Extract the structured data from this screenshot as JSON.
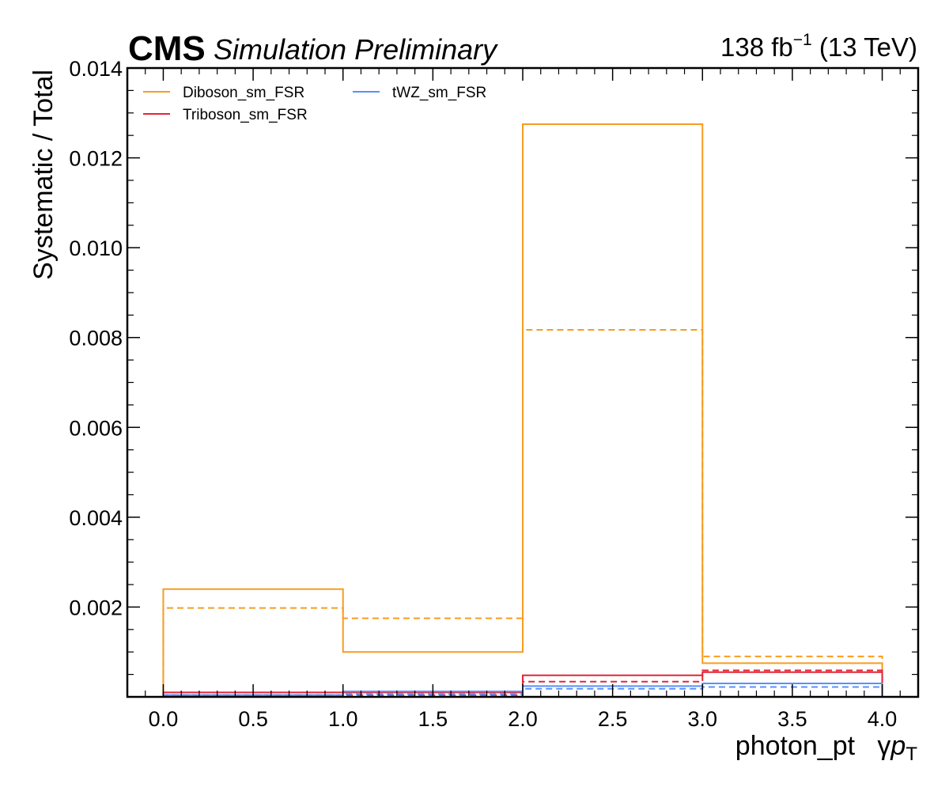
{
  "chart_data": {
    "type": "line",
    "header": {
      "experiment": "CMS",
      "status": "Simulation Preliminary",
      "lumi_prefix": "138 fb",
      "lumi_exponent": "−1",
      "lumi_suffix": " (13 TeV)"
    },
    "xlabel": "photon_pt   γ",
    "xlabel_math": "p",
    "xlabel_sub": "T",
    "ylabel": "Systematic / Total",
    "xlim": [
      -0.2,
      4.2
    ],
    "ylim": [
      0.0,
      0.014
    ],
    "x_ticks": [
      "0.0",
      "0.5",
      "1.0",
      "1.5",
      "2.0",
      "2.5",
      "3.0",
      "3.5",
      "4.0"
    ],
    "y_ticks": [
      "0.002",
      "0.004",
      "0.006",
      "0.008",
      "0.010",
      "0.012",
      "0.014"
    ],
    "bin_edges": [
      0,
      1,
      2,
      3,
      4
    ],
    "step_style": "histogram",
    "legend_position": "top-left",
    "grid": false,
    "series": [
      {
        "name": "Diboson_sm_FSR",
        "color": "#f89c20",
        "solid": [
          0.0024,
          0.001,
          0.01275,
          0.00075
        ],
        "dashed": [
          0.00198,
          0.00175,
          0.00817,
          0.0009
        ]
      },
      {
        "name": "Triboson_sm_FSR",
        "color": "#e42536",
        "solid": [
          0.0001,
          0.0001,
          0.00048,
          0.00055
        ],
        "dashed": [
          4e-05,
          4e-05,
          0.00034,
          0.00059
        ]
      },
      {
        "name": "tWZ_sm_FSR",
        "color": "#5790fc",
        "solid": [
          4e-05,
          0.00012,
          0.00024,
          0.0003
        ],
        "dashed": [
          2e-05,
          6e-05,
          0.00018,
          0.00022
        ]
      }
    ]
  }
}
